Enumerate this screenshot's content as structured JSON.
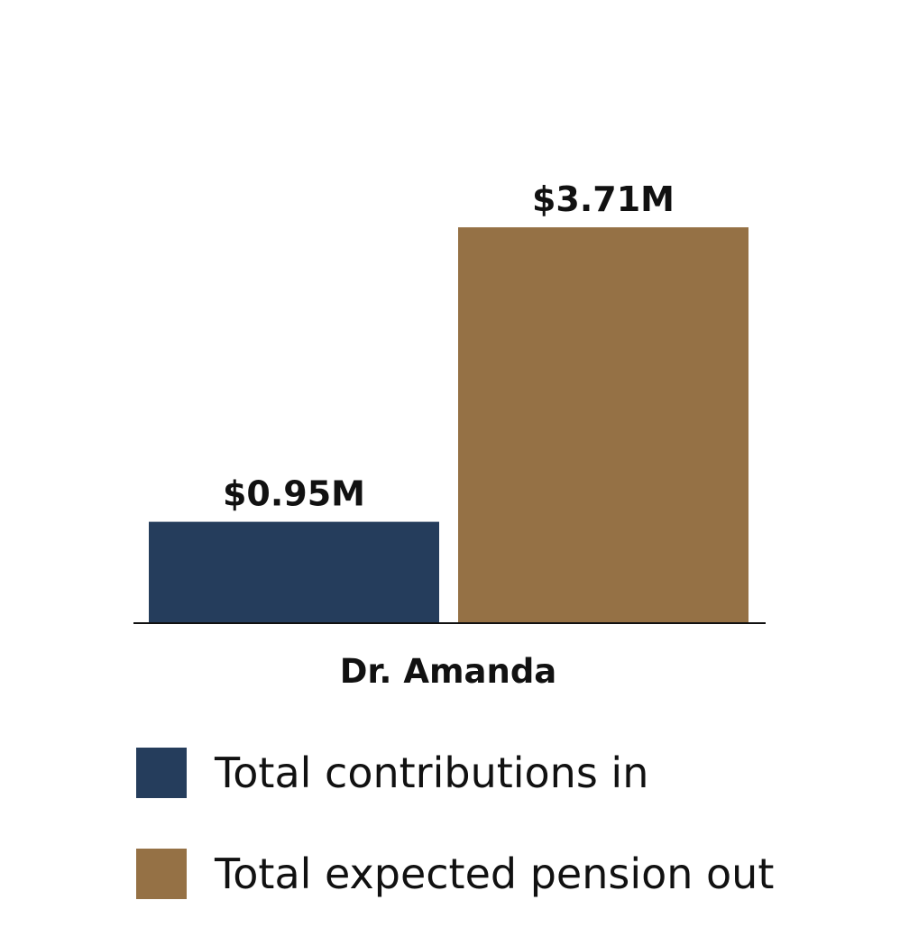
{
  "chart_data": {
    "type": "bar",
    "categories": [
      "Dr. Amanda"
    ],
    "series": [
      {
        "name": "Total contributions in",
        "values": [
          0.95
        ],
        "label": "$0.95M",
        "color": "#253d5c"
      },
      {
        "name": "Total expected pension out",
        "values": [
          3.71
        ],
        "label": "$3.71M",
        "color": "#957145"
      }
    ],
    "title": "",
    "xlabel": "",
    "ylabel": "",
    "ylim": [
      0,
      4.15
    ],
    "grid": false,
    "legend_position": "bottom",
    "axis_color": "#111111"
  }
}
